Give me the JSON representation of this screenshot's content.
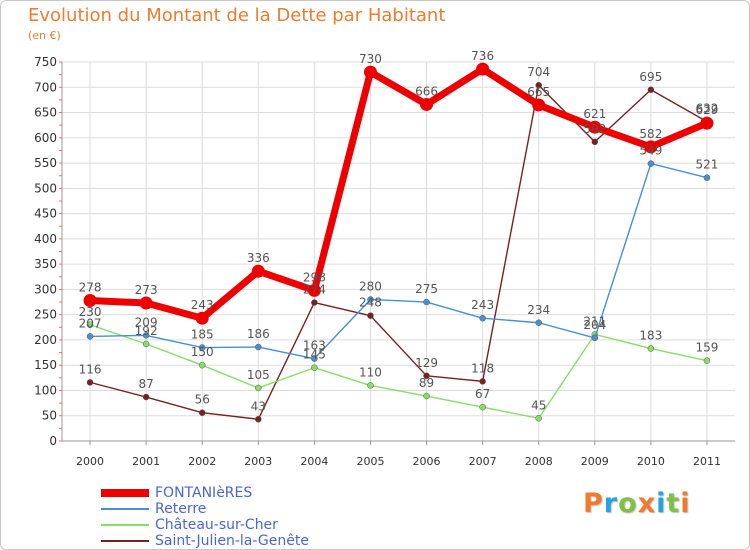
{
  "chart_data": {
    "type": "line",
    "title": "Evolution du Montant de la Dette par Habitant",
    "subtitle": "(en €)",
    "x": [
      "2000",
      "2001",
      "2002",
      "2003",
      "2004",
      "2005",
      "2006",
      "2007",
      "2008",
      "2009",
      "2010",
      "2011"
    ],
    "ylim": [
      0,
      750
    ],
    "yticks": [
      0,
      50,
      100,
      150,
      200,
      250,
      300,
      350,
      400,
      450,
      500,
      550,
      600,
      650,
      700,
      750
    ],
    "grid": true,
    "legend_position": "bottom-left",
    "series": [
      {
        "name": "FONTANIèRES",
        "color": "#ee0000",
        "values": [
          278,
          273,
          243,
          336,
          298,
          730,
          666,
          736,
          665,
          621,
          582,
          629
        ]
      },
      {
        "name": "Reterre",
        "color": "#4a8fd0",
        "values": [
          207,
          209,
          185,
          186,
          163,
          280,
          275,
          243,
          234,
          204,
          549,
          521
        ]
      },
      {
        "name": "Château-sur-Cher",
        "color": "#88dd66",
        "values": [
          230,
          192,
          150,
          105,
          145,
          110,
          89,
          67,
          45,
          211,
          183,
          159
        ]
      },
      {
        "name": "Saint-Julien-la-Genête",
        "color": "#772222",
        "values": [
          116,
          87,
          56,
          43,
          274,
          248,
          129,
          118,
          704,
          592,
          695,
          632
        ]
      }
    ]
  },
  "logo": {
    "text": "Proxiti",
    "colors": [
      "#f07b2e",
      "#27a3dd",
      "#7dc242",
      "#f07b2e",
      "#27a3dd",
      "#7dc242",
      "#f07b2e"
    ]
  }
}
